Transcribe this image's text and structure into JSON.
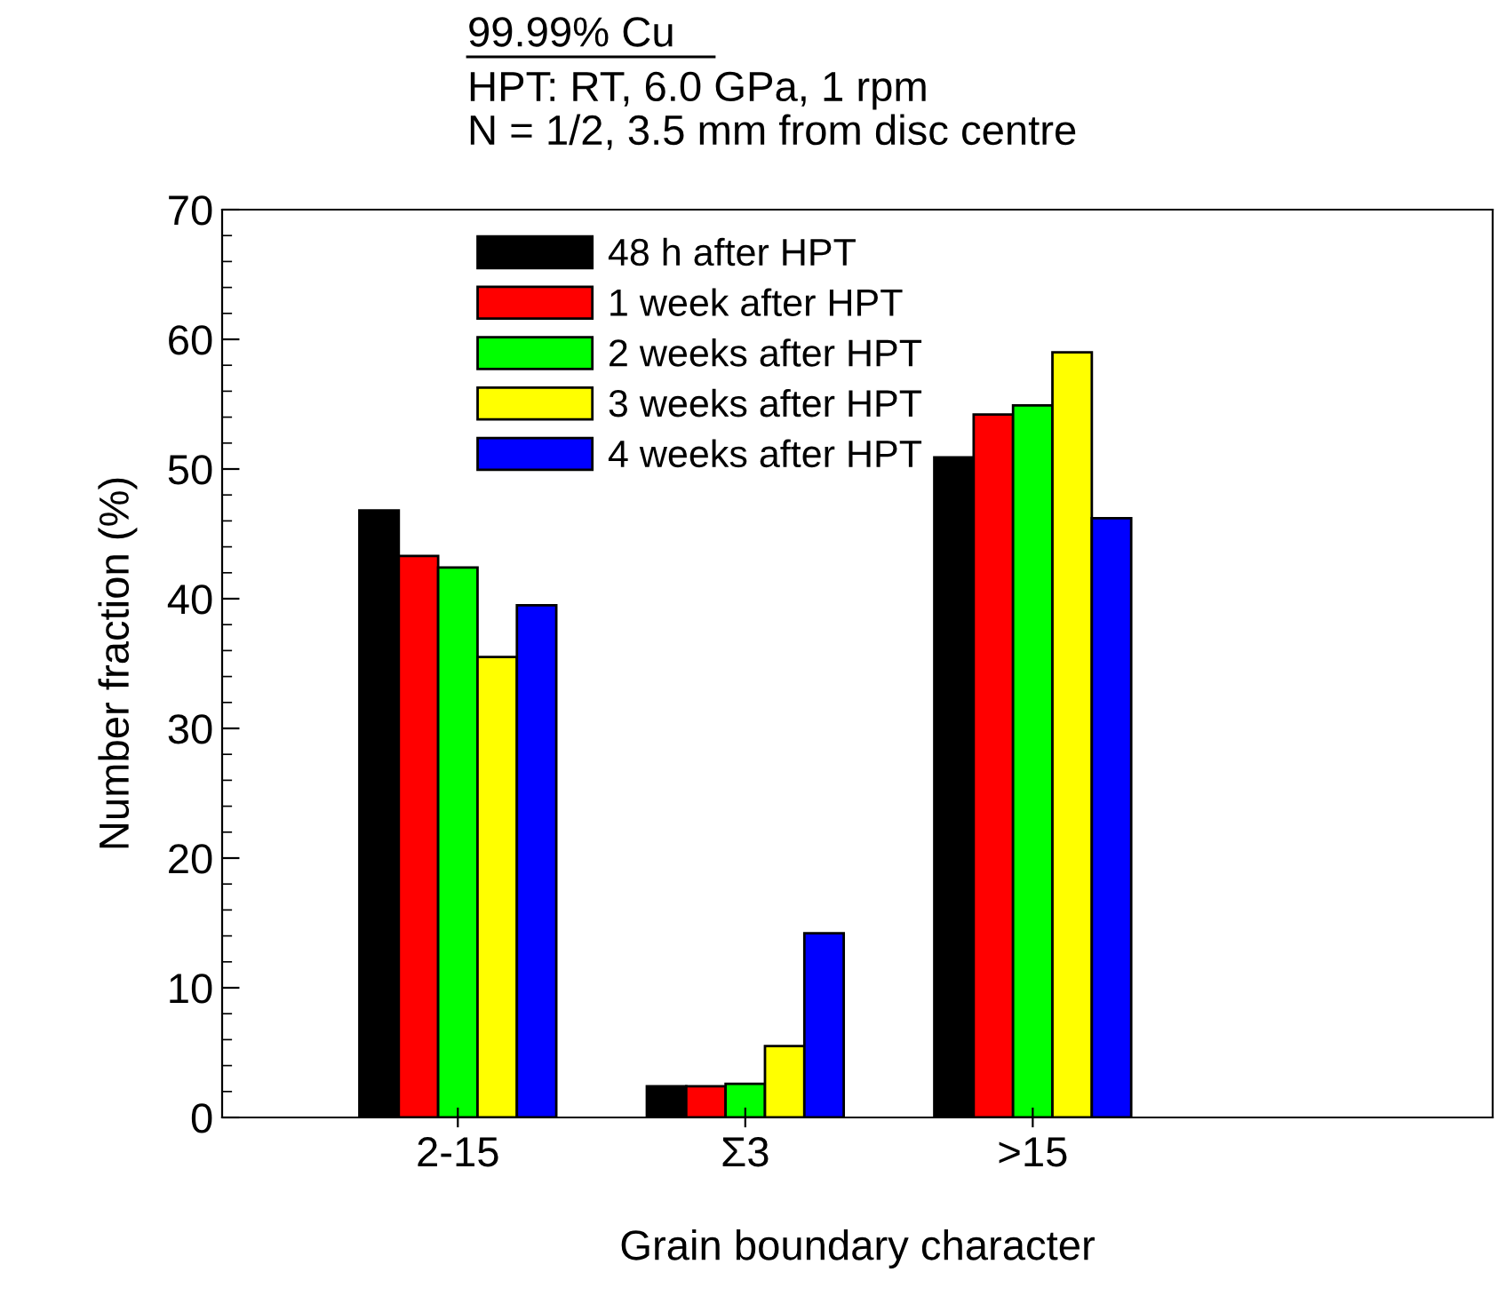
{
  "chart_data": {
    "type": "bar",
    "title": "99.99% Cu",
    "subtitle": "HPT: RT, 6.0 GPa, 1 rpm\nN = 1/2, 3.5 mm from disc centre",
    "xlabel": "Grain boundary character",
    "ylabel": "Number fraction (%)",
    "categories": [
      "2-15",
      "Σ3",
      ">15"
    ],
    "series": [
      {
        "name": "48 h after HPT",
        "color": "#000000",
        "values": [
          46.8,
          2.4,
          50.9
        ]
      },
      {
        "name": "1 week after HPT",
        "color": "#ff0000",
        "values": [
          43.3,
          2.4,
          54.2
        ]
      },
      {
        "name": "2 weeks after HPT",
        "color": "#00ff00",
        "values": [
          42.4,
          2.6,
          54.9
        ]
      },
      {
        "name": "3 weeks after HPT",
        "color": "#ffff00",
        "values": [
          35.5,
          5.5,
          59.0
        ]
      },
      {
        "name": "4 weeks after HPT",
        "color": "#0000ff",
        "values": [
          39.5,
          14.2,
          46.2
        ]
      }
    ],
    "ylim": [
      0,
      70
    ],
    "yticks": [
      0,
      10,
      20,
      30,
      40,
      50,
      60,
      70
    ],
    "grid": false,
    "legend": "top"
  }
}
